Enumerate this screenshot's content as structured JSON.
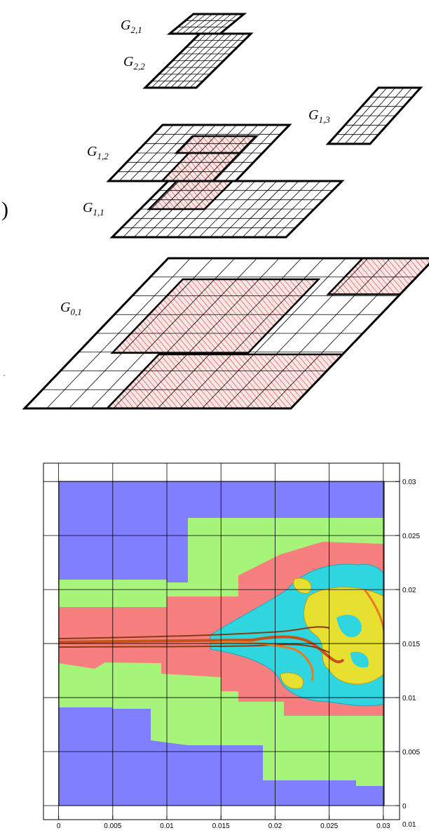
{
  "diagram": {
    "labels": [
      {
        "base": "G",
        "sub": "2,1"
      },
      {
        "base": "G",
        "sub": "2,2"
      },
      {
        "base": "G",
        "sub": "1,3"
      },
      {
        "base": "G",
        "sub": "1,2"
      },
      {
        "base": "G",
        "sub": "1,1"
      },
      {
        "base": "G",
        "sub": "0,1"
      }
    ],
    "fragment": ")"
  },
  "chart_data": {
    "type": "contour",
    "xlim": [
      -0.0014,
      0.0315
    ],
    "ylim": [
      -0.0013,
      0.0317
    ],
    "xticks": [
      0,
      0.005,
      0.01,
      0.015,
      0.02,
      0.025,
      0.03
    ],
    "yticks": [
      0,
      0.005,
      0.01,
      0.015,
      0.02,
      0.025,
      0.03
    ],
    "y_axis_side": "right",
    "grid": true,
    "annotation": "0.01"
  }
}
